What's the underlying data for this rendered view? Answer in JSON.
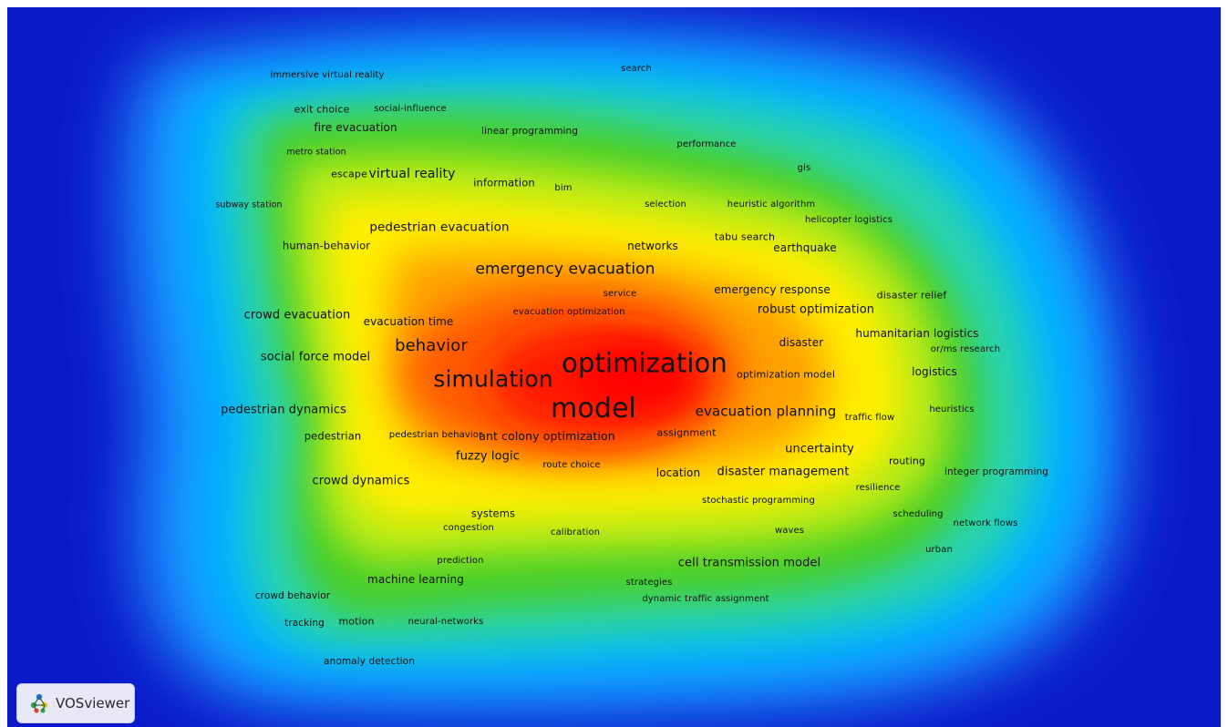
{
  "app": {
    "brand_name": "VOSviewer",
    "logo_icon": "vosviewer-logo-icon"
  },
  "colors": {
    "background": "#0b1ac8",
    "density_scale": [
      "#0b1ac8",
      "#00aaff",
      "#3cd06a",
      "#e8f000",
      "#ff9a00",
      "#ff0000"
    ]
  },
  "terms": [
    {
      "text": "optimization",
      "weight": 10
    },
    {
      "text": "model",
      "weight": 10
    },
    {
      "text": "simulation",
      "weight": 8
    },
    {
      "text": "behavior",
      "weight": 6
    },
    {
      "text": "emergency evacuation",
      "weight": 6
    },
    {
      "text": "evacuation planning",
      "weight": 5
    },
    {
      "text": "pedestrian evacuation",
      "weight": 4
    },
    {
      "text": "virtual reality",
      "weight": 4
    },
    {
      "text": "social force model",
      "weight": 4
    },
    {
      "text": "crowd evacuation",
      "weight": 4
    },
    {
      "text": "pedestrian dynamics",
      "weight": 4
    },
    {
      "text": "fuzzy logic",
      "weight": 4
    },
    {
      "text": "ant colony optimization",
      "weight": 4
    },
    {
      "text": "crowd dynamics",
      "weight": 4
    },
    {
      "text": "uncertainty",
      "weight": 4
    },
    {
      "text": "disaster management",
      "weight": 4
    },
    {
      "text": "robust optimization",
      "weight": 4
    },
    {
      "text": "cell transmission model",
      "weight": 4
    },
    {
      "text": "humanitarian logistics",
      "weight": 3
    },
    {
      "text": "emergency response",
      "weight": 3
    },
    {
      "text": "earthquake",
      "weight": 3
    },
    {
      "text": "networks",
      "weight": 3
    },
    {
      "text": "logistics",
      "weight": 3
    },
    {
      "text": "disaster",
      "weight": 3
    },
    {
      "text": "location",
      "weight": 3
    },
    {
      "text": "evacuation time",
      "weight": 3
    },
    {
      "text": "fire evacuation",
      "weight": 3
    },
    {
      "text": "machine learning",
      "weight": 3
    },
    {
      "text": "systems",
      "weight": 3
    },
    {
      "text": "information",
      "weight": 3
    },
    {
      "text": "human-behavior",
      "weight": 3
    },
    {
      "text": "pedestrian",
      "weight": 3
    },
    {
      "text": "tabu search",
      "weight": 3
    },
    {
      "text": "disaster relief",
      "weight": 3
    },
    {
      "text": "motion",
      "weight": 3
    },
    {
      "text": "exit choice",
      "weight": 3
    },
    {
      "text": "escape",
      "weight": 3
    },
    {
      "text": "assignment",
      "weight": 3
    },
    {
      "text": "routing",
      "weight": 3
    },
    {
      "text": "optimization model",
      "weight": 2
    },
    {
      "text": "evacuation optimization",
      "weight": 2
    },
    {
      "text": "service",
      "weight": 2
    },
    {
      "text": "route choice",
      "weight": 2
    },
    {
      "text": "pedestrian behavior",
      "weight": 2
    },
    {
      "text": "traffic flow",
      "weight": 2
    },
    {
      "text": "heuristics",
      "weight": 2
    },
    {
      "text": "or/ms research",
      "weight": 2
    },
    {
      "text": "integer programming",
      "weight": 2
    },
    {
      "text": "resilience",
      "weight": 2
    },
    {
      "text": "stochastic programming",
      "weight": 2
    },
    {
      "text": "scheduling",
      "weight": 2
    },
    {
      "text": "network flows",
      "weight": 2
    },
    {
      "text": "urban",
      "weight": 2
    },
    {
      "text": "waves",
      "weight": 2
    },
    {
      "text": "calibration",
      "weight": 2
    },
    {
      "text": "congestion",
      "weight": 2
    },
    {
      "text": "prediction",
      "weight": 2
    },
    {
      "text": "strategies",
      "weight": 2
    },
    {
      "text": "dynamic traffic assignment",
      "weight": 2
    },
    {
      "text": "crowd behavior",
      "weight": 2
    },
    {
      "text": "tracking",
      "weight": 2
    },
    {
      "text": "neural-networks",
      "weight": 2
    },
    {
      "text": "anomaly detection",
      "weight": 2
    },
    {
      "text": "helicopter logistics",
      "weight": 2
    },
    {
      "text": "heuristic algorithm",
      "weight": 2
    },
    {
      "text": "selection",
      "weight": 2
    },
    {
      "text": "gis",
      "weight": 2
    },
    {
      "text": "performance",
      "weight": 2
    },
    {
      "text": "search",
      "weight": 2
    },
    {
      "text": "linear programming",
      "weight": 2
    },
    {
      "text": "bim",
      "weight": 2
    },
    {
      "text": "immersive virtual reality",
      "weight": 2
    },
    {
      "text": "social-influence",
      "weight": 2
    },
    {
      "text": "metro station",
      "weight": 2
    },
    {
      "text": "subway station",
      "weight": 2
    }
  ]
}
